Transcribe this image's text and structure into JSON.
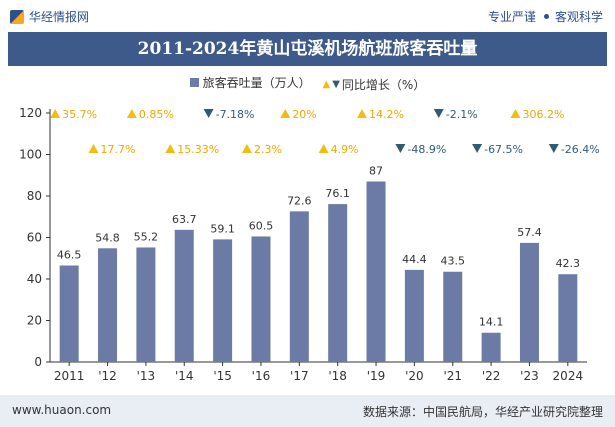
{
  "header": {
    "brand": "华经情报网",
    "tagline_left": "专业严谨",
    "tagline_right": "客观科学"
  },
  "colors": {
    "bar": "#6b7ba6",
    "up": "#f3bc12",
    "up_text": "#f0a800",
    "down": "#2f5c74",
    "title_bg": "#3d5a8a"
  },
  "legend": {
    "bar_label": "旅客吞吐量（万人）",
    "yoy_label": "同比增长（%）"
  },
  "chart_data": {
    "type": "bar",
    "title": "2011-2024年黄山屯溪机场航班旅客吞吐量",
    "categories": [
      "2011",
      "'12",
      "'13",
      "'14",
      "'15",
      "'16",
      "'17",
      "'18",
      "'19",
      "'20",
      "'21",
      "'22",
      "'23",
      "2024"
    ],
    "series": [
      {
        "name": "旅客吞吐量（万人）",
        "values": [
          46.5,
          54.8,
          55.2,
          63.7,
          59.1,
          60.5,
          72.6,
          76.1,
          87,
          44.4,
          43.5,
          14.1,
          57.4,
          42.3
        ],
        "value_labels": [
          "46.5",
          "54.8",
          "55.2",
          "63.7",
          "59.1",
          "60.5",
          "72.6",
          "76.1",
          "87",
          "44.4",
          "43.5",
          "14.1",
          "57.4",
          "42.3"
        ]
      },
      {
        "name": "同比增长（%）",
        "values": [
          35.7,
          17.7,
          0.85,
          15.33,
          -7.18,
          2.3,
          20,
          4.9,
          14.2,
          -48.9,
          -2.1,
          -67.5,
          306.2,
          -26.4
        ],
        "value_labels": [
          "35.7%",
          "17.7%",
          "0.85%",
          "15.33%",
          "-7.18%",
          "2.3%",
          "20%",
          "4.9%",
          "14.2%",
          "-48.9%",
          "-2.1%",
          "-67.5%",
          "306.2%",
          "-26.4%"
        ]
      }
    ],
    "ylim": [
      0,
      120
    ],
    "yticks": [
      "0",
      "20",
      "40",
      "60",
      "80",
      "100",
      "120"
    ],
    "xlabel": "",
    "ylabel": "",
    "legend_position": "top-center",
    "grid": false
  },
  "footer": {
    "url": "www.huaon.com",
    "source": "数据来源：中国民航局，华经产业研究院整理"
  }
}
